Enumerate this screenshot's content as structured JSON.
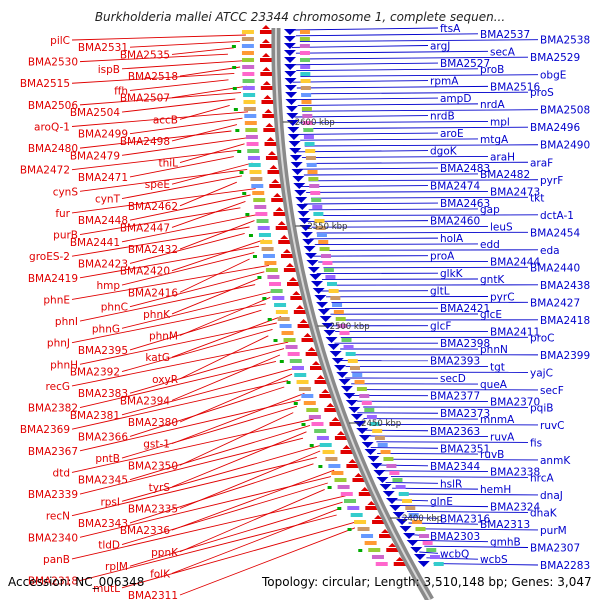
{
  "title": "Burkholderia mallei ATCC 23344 chromosome 1, complete sequen...",
  "footer": {
    "accession": "Accession: NC_006348",
    "topology": "Topology: circular; Length: 3,510,148 bp; Genes: 3,047"
  },
  "colors": {
    "left_genes": "#e00000",
    "right_genes": "#0000cc",
    "backbone": "#888888",
    "ruler": "#333333"
  },
  "ruler_ticks": [
    "2600 kbp",
    "2550 kbp",
    "2500 kbp",
    "2450 kbp",
    "2400 kbp"
  ],
  "left_labels": [
    "pilC",
    "BMA2531",
    "BMA2535",
    "BMA2530",
    "ispB",
    "BMA2518",
    "BMA2515",
    "ffh",
    "BMA2507",
    "BMA2506",
    "BMA2504",
    "accB",
    "aroQ-1",
    "BMA2499",
    "BMA2498",
    "BMA2480",
    "BMA2479",
    "thiL",
    "BMA2472",
    "BMA2471",
    "speE",
    "cynS",
    "cynT",
    "BMA2462",
    "fur",
    "BMA2448",
    "BMA2447",
    "purB",
    "BMA2441",
    "BMA2432",
    "groES-2",
    "BMA2423",
    "BMA2420",
    "BMA2419",
    "hmp",
    "BMA2416",
    "phnE",
    "phnC",
    "phnK",
    "phnI",
    "phnG",
    "phnM",
    "phnJ",
    "BMA2395",
    "katG",
    "phnH",
    "BMA2392",
    "oxyR",
    "recG",
    "BMA2383",
    "BMA2394",
    "BMA2382",
    "BMA2381",
    "BMA2380",
    "BMA2369",
    "BMA2366",
    "gst-1",
    "BMA2367",
    "pntB",
    "BMA2350",
    "dtd",
    "BMA2345",
    "tyrS",
    "BMA2339",
    "rpsI",
    "BMA2335",
    "recN",
    "BMA2343",
    "BMA2336",
    "BMA2340",
    "tldD",
    "ppnK",
    "panB",
    "rplM",
    "folK",
    "BMA2318",
    "mutL",
    "BMA2311"
  ],
  "right_labels": [
    "ftsA",
    "BMA2537",
    "BMA2538",
    "argJ",
    "secA",
    "BMA2529",
    "BMA2527",
    "proB",
    "obgE",
    "rpmA",
    "BMA2516",
    "proS",
    "ampD",
    "nrdA",
    "BMA2508",
    "nrdB",
    "mpl",
    "BMA2496",
    "aroE",
    "mtgA",
    "BMA2490",
    "dgoK",
    "araH",
    "araF",
    "BMA2483",
    "BMA2482",
    "pyrF",
    "BMA2474",
    "BMA2473",
    "tkt",
    "BMA2463",
    "gap",
    "dctA-1",
    "BMA2460",
    "leuS",
    "BMA2454",
    "holA",
    "edd",
    "eda",
    "proA",
    "BMA2444",
    "BMA2440",
    "glkK",
    "gntK",
    "BMA2438",
    "gltL",
    "pyrC",
    "BMA2427",
    "BMA2421",
    "glcE",
    "BMA2418",
    "glcF",
    "BMA2411",
    "proC",
    "BMA2398",
    "phnN",
    "BMA2399",
    "BMA2393",
    "tgt",
    "yajC",
    "secD",
    "queA",
    "secF",
    "BMA2377",
    "BMA2370",
    "pqiB",
    "BMA2373",
    "mnmA",
    "ruvC",
    "BMA2363",
    "ruvA",
    "fis",
    "BMA2351",
    "ruvB",
    "anmK",
    "BMA2344",
    "BMA2338",
    "hrcA",
    "hslR",
    "hemH",
    "dnaJ",
    "glnE",
    "BMA2324",
    "dnaK",
    "BMA2316",
    "BMA2313",
    "purM",
    "BMA2303",
    "gmhB",
    "BMA2307",
    "wcbQ",
    "wcbS",
    "BMA2283"
  ]
}
